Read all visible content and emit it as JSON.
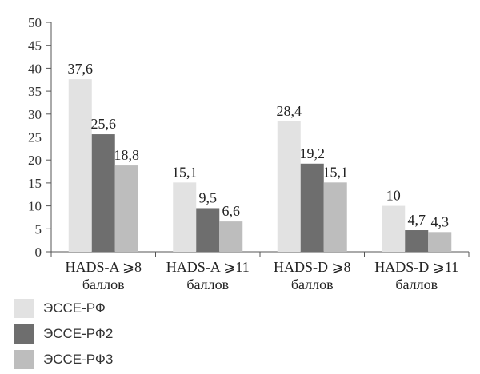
{
  "chart_data": {
    "type": "bar",
    "categories": [
      [
        "HADS-A ⩾8",
        "баллов"
      ],
      [
        "HADS-A ⩾11",
        "баллов"
      ],
      [
        "HADS-D ⩾8",
        "баллов"
      ],
      [
        "HADS-D ⩾11",
        "баллов"
      ]
    ],
    "series": [
      {
        "name": "ЭССЕ-РФ",
        "color": "#e2e2e2",
        "values": [
          37.6,
          15.1,
          28.4,
          10
        ],
        "labels": [
          "37,6",
          "15,1",
          "28,4",
          "10"
        ]
      },
      {
        "name": "ЭССЕ-РФ2",
        "color": "#6e6e6e",
        "values": [
          25.6,
          9.5,
          19.2,
          4.7
        ],
        "labels": [
          "25,6",
          "9,5",
          "19,2",
          "4,7"
        ]
      },
      {
        "name": "ЭССЕ-РФ3",
        "color": "#bdbdbd",
        "values": [
          18.8,
          6.6,
          15.1,
          4.3
        ],
        "labels": [
          "18,8",
          "6,6",
          "15,1",
          "4,3"
        ]
      }
    ],
    "yticks": [
      0,
      5,
      10,
      15,
      20,
      25,
      30,
      35,
      40,
      45,
      50
    ],
    "ylim": [
      0,
      50
    ],
    "grid": false,
    "legend": "bottom-left"
  }
}
